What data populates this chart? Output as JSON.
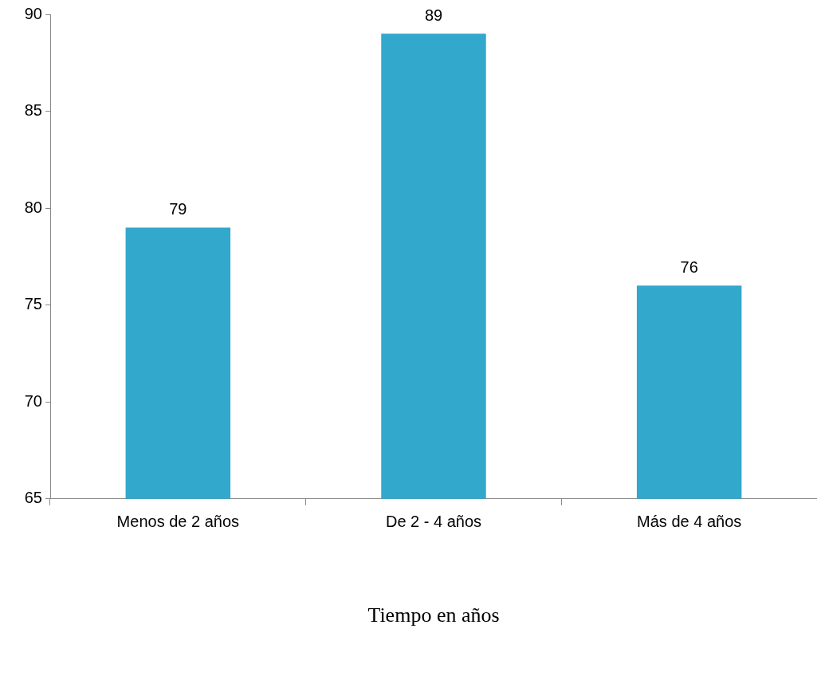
{
  "chart_data": {
    "type": "bar",
    "xlabel": "Tiempo en años",
    "categories": [
      "Menos de 2 años",
      "De 2 - 4 años",
      "Más de 4 años"
    ],
    "values": [
      79,
      89,
      76
    ],
    "color": "#31a8cc",
    "ylim": [
      65,
      90
    ],
    "yticks": [
      65,
      70,
      75,
      80,
      85,
      90
    ],
    "data_labels": true
  }
}
